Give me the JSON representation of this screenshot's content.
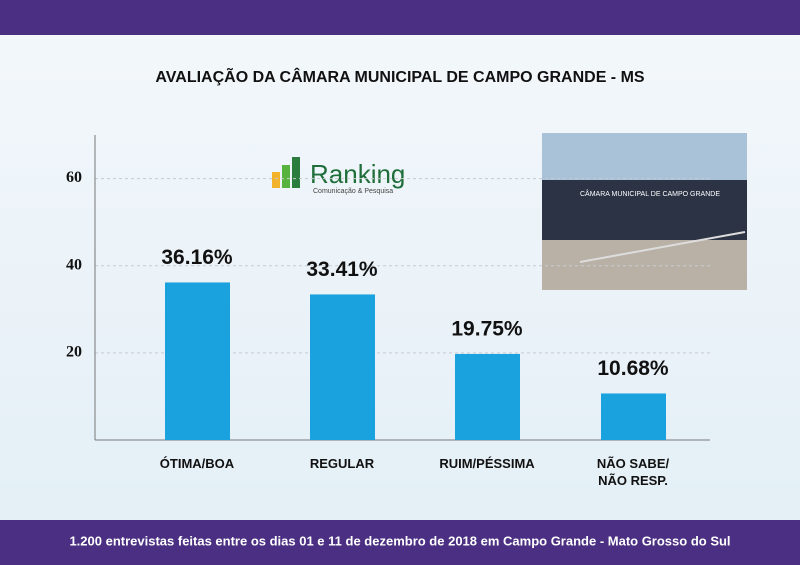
{
  "chart_data": {
    "type": "bar",
    "title": "AVALIAÇÃO DA CÂMARA MUNICIPAL DE CAMPO GRANDE - MS",
    "categories": [
      "ÓTIMA/BOA",
      "REGULAR",
      "RUIM/PÉSSIMA",
      "NÃO SABE/\nNÃO RESP."
    ],
    "values": [
      36.16,
      33.41,
      19.75,
      10.68
    ],
    "value_labels": [
      "36.16%",
      "33.41%",
      "19.75%",
      "10.68%"
    ],
    "color": "#1aa2de",
    "ylim": [
      0,
      70
    ],
    "yticks": [
      20,
      40,
      60
    ],
    "grid": true
  },
  "logo": {
    "name": "Ranking",
    "tagline": "Comunicação & Pesquisa"
  },
  "photo_sign": "CÂMARA MUNICIPAL DE CAMPO GRANDE",
  "footer": "1.200 entrevistas feitas entre os dias 01 e 11 de dezembro de 2018 em Campo Grande - Mato Grosso do Sul"
}
